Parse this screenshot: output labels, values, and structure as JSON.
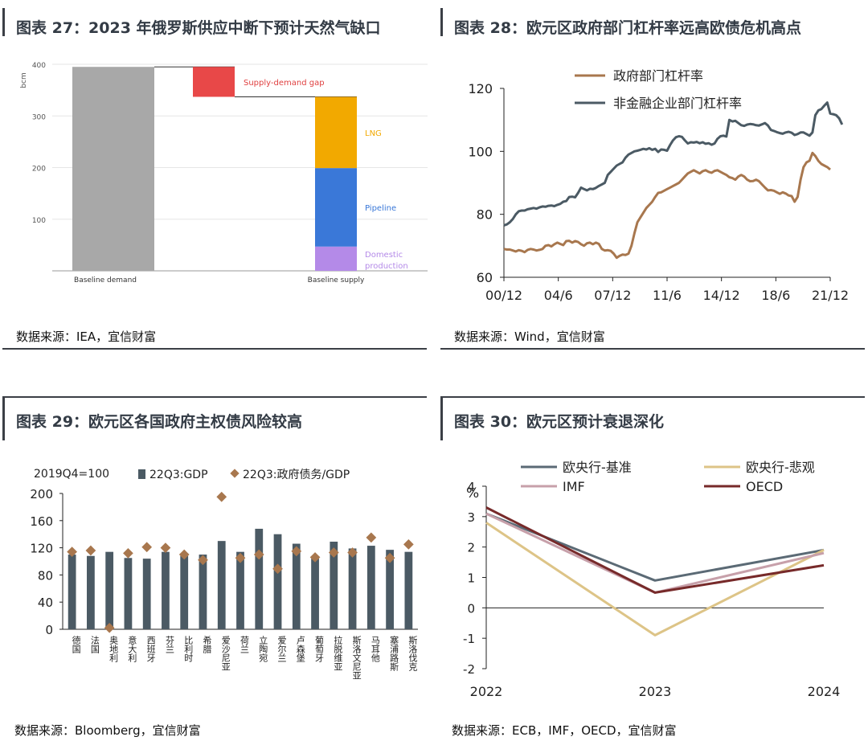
{
  "charts": [
    {
      "id": "fig27",
      "title": "图表 27：2023 年俄罗斯供应中断下预计天然气缺口",
      "source": "数据来源：IEA，宜信财富",
      "chart_data": {
        "type": "bar",
        "ylabel": "bcm",
        "ylim": [
          0,
          400
        ],
        "yticks": [
          "400",
          "300",
          "200",
          "100"
        ],
        "categories": [
          "Baseline demand",
          "Baseline supply"
        ],
        "baseline_demand": 395,
        "supply_demand_gap": 58,
        "gap_label": "Supply-demand gap",
        "supply_stack": [
          {
            "name": "Domestic",
            "name2": "production",
            "value": 47,
            "color": "#b48ae8"
          },
          {
            "name": "Pipeline",
            "value": 152,
            "color": "#3a78d8"
          },
          {
            "name": "LNG",
            "value": 138,
            "color": "#f2a900"
          }
        ],
        "demand_color": "#a8a8a8",
        "gap_color": "#e84848"
      }
    },
    {
      "id": "fig28",
      "title": "图表 28：欧元区政府部门杠杆率远高欧债危机高点",
      "source": "数据来源：Wind，宜信财富",
      "chart_data": {
        "type": "line",
        "x_ticks": [
          "00/12",
          "04/6",
          "07/12",
          "11/6",
          "14/12",
          "18/6",
          "21/12"
        ],
        "ylim": [
          60,
          120
        ],
        "yticks": [
          "120",
          "100",
          "80",
          "60"
        ],
        "series": [
          {
            "name": "政府部门杠杆率",
            "color": "#a8774e",
            "values": [
              69,
              68.8,
              68.8,
              68.5,
              68.2,
              68.6,
              68.4,
              68,
              68.7,
              69,
              68.8,
              68.5,
              68.7,
              69,
              70,
              70.2,
              69.8,
              70.5,
              71,
              70.6,
              70.2,
              71.5,
              71.6,
              71,
              71.5,
              71.2,
              70.5,
              70,
              70.8,
              71,
              70.5,
              71,
              70.6,
              69,
              68.5,
              68.6,
              68.4,
              67.5,
              66.2,
              66.8,
              67.2,
              67.1,
              67.5,
              70,
              74,
              77.5,
              79,
              80.5,
              82,
              83,
              84,
              85.5,
              86.8,
              87,
              87.5,
              88,
              88.5,
              89,
              89.5,
              90,
              91,
              92,
              93,
              93.5,
              94,
              93.5,
              93,
              93.7,
              94,
              93.5,
              93.2,
              93.8,
              94,
              93.5,
              93,
              92.5,
              91.8,
              91.5,
              91,
              92,
              92.5,
              92,
              91,
              90.5,
              90.6,
              91,
              90.5,
              89.5,
              88.5,
              87.6,
              87.7,
              87.5,
              87,
              86.5,
              87,
              86.6,
              86,
              85.8,
              84,
              85.5,
              91,
              95,
              96.5,
              97,
              99.5,
              98.5,
              97,
              96,
              95.5,
              95,
              94.2
            ]
          },
          {
            "name": "非金融企业部门杠杆率",
            "color": "#4b5a64",
            "values": [
              76.5,
              76.8,
              77.5,
              78.5,
              80,
              81,
              81.2,
              81.2,
              81.6,
              81.8,
              82,
              81.8,
              82.2,
              82.5,
              82.4,
              82.7,
              82.8,
              82.6,
              83,
              83.3,
              84,
              84.2,
              85.5,
              85.6,
              85.4,
              86.8,
              88.5,
              88,
              87.6,
              88.1,
              88,
              88.4,
              89,
              89.5,
              90,
              92.5,
              93.5,
              94.5,
              95.5,
              96,
              96.5,
              98,
              99,
              99.5,
              100,
              100.2,
              100.5,
              100.8,
              100.6,
              101,
              100.5,
              100.8,
              99.8,
              100.6,
              100.5,
              100.2,
              102,
              103.5,
              104.5,
              104.8,
              104.6,
              103.5,
              102.5,
              102.9,
              102.8,
              103,
              102.6,
              102.9,
              102.4,
              102.6,
              102.1,
              102.5,
              104,
              104.8,
              105,
              104.7,
              110,
              109.5,
              109.7,
              109,
              108.3,
              108.1,
              108.5,
              108.7,
              108.6,
              108.3,
              108.2,
              108.6,
              109,
              108.2,
              106.8,
              106.5,
              106.1,
              105.8,
              105.6,
              106,
              106.2,
              105.9,
              105.2,
              105.5,
              106,
              106,
              105.5,
              105,
              106,
              111.5,
              113,
              113.4,
              114.5,
              115.5,
              112,
              111.8,
              111.5,
              110.5,
              108.5
            ]
          }
        ]
      }
    },
    {
      "id": "fig29",
      "title": "图表 29：欧元区各国政府主权债风险较高",
      "source": "数据来源：Bloomberg，宜信财富",
      "chart_data": {
        "type": "bar",
        "note": "2019Q4=100",
        "ylim": [
          0,
          200
        ],
        "yticks": [
          "200",
          "160",
          "120",
          "80",
          "40",
          "0"
        ],
        "categories": [
          "德国",
          "法国",
          "奥地利",
          "意大利",
          "西班牙",
          "芬兰",
          "比利时",
          "希腊",
          "爱沙尼亚",
          "荷兰",
          "立陶宛",
          "爱尔兰",
          "卢森堡",
          "葡萄牙",
          "拉脱维亚",
          "斯洛文尼亚",
          "马耳他",
          "塞浦路斯",
          "斯洛伐克"
        ],
        "series": [
          {
            "name": "22Q3:GDP",
            "color": "#4b5a64",
            "values": [
              110,
              108,
              114,
              105,
              104,
              114,
              108,
              110,
              130,
              114,
              148,
              140,
              126,
              104,
              129,
              119,
              123,
              117,
              114
            ]
          },
          {
            "name": "22Q3:政府债务/GDP",
            "color": "#a8774e",
            "values": [
              114,
              116,
              2,
              112,
              121,
              120,
              110,
              102,
              195,
              105,
              110,
              89,
              115,
              106,
              113,
              113,
              135,
              105,
              125
            ]
          }
        ]
      }
    },
    {
      "id": "fig30",
      "title": "图表 30：欧元区预计衰退深化",
      "source": "数据来源：ECB，IMF，OECD，宜信财富",
      "chart_data": {
        "type": "line",
        "categories": [
          "2022",
          "2023",
          "2024"
        ],
        "ylabel": "%",
        "ylim": [
          -2,
          4
        ],
        "yticks": [
          "4",
          "3",
          "2",
          "1",
          "0",
          "-1",
          "-2"
        ],
        "series": [
          {
            "name": "欧央行-基准",
            "color": "#5b6a75",
            "values": [
              3.1,
              0.9,
              1.9
            ]
          },
          {
            "name": "欧央行-悲观",
            "color": "#ddc487",
            "values": [
              2.8,
              -0.9,
              1.9
            ]
          },
          {
            "name": "IMF",
            "color": "#c7a0aa",
            "values": [
              3.1,
              0.5,
              1.8
            ]
          },
          {
            "name": "OECD",
            "color": "#772a2a",
            "values": [
              3.3,
              0.5,
              1.4
            ]
          }
        ]
      }
    }
  ]
}
